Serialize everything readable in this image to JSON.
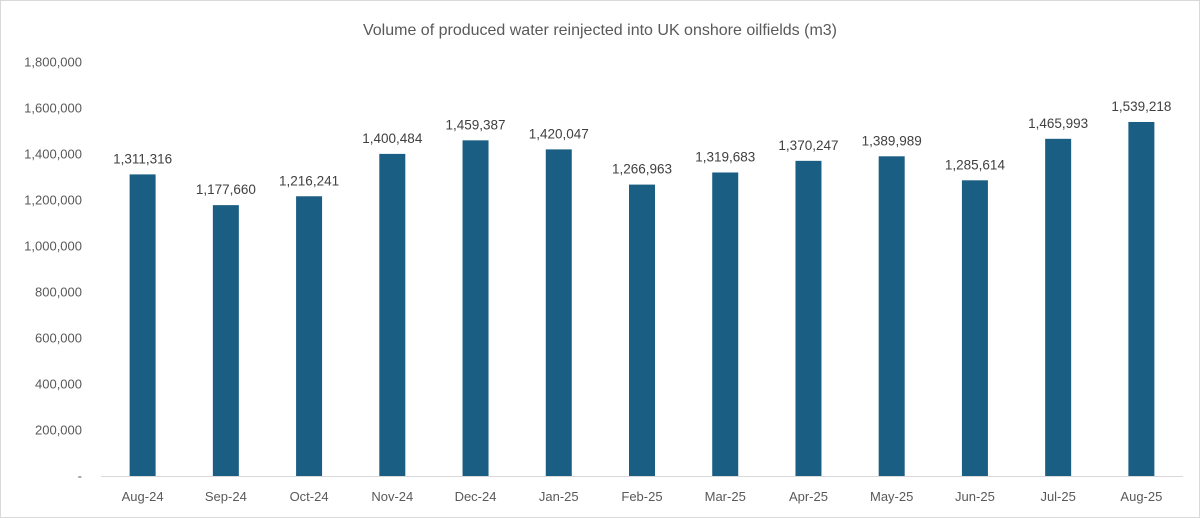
{
  "chart_data": {
    "type": "bar",
    "title": "Volume of produced water reinjected into UK onshore oilfields (m3)",
    "xlabel": "",
    "ylabel": "",
    "categories": [
      "Aug-24",
      "Sep-24",
      "Oct-24",
      "Nov-24",
      "Dec-24",
      "Jan-25",
      "Feb-25",
      "Mar-25",
      "Apr-25",
      "May-25",
      "Jun-25",
      "Jul-25",
      "Aug-25"
    ],
    "values": [
      1311316,
      1177660,
      1216241,
      1400484,
      1459387,
      1420047,
      1266963,
      1319683,
      1370247,
      1389989,
      1285614,
      1465993,
      1539218
    ],
    "value_labels": [
      "1,311,316",
      "1,177,660",
      "1,216,241",
      "1,400,484",
      "1,459,387",
      "1,420,047",
      "1,266,963",
      "1,319,683",
      "1,370,247",
      "1,389,989",
      "1,285,614",
      "1,465,993",
      "1,539,218"
    ],
    "ylim": [
      0,
      1800000
    ],
    "y_ticks": [
      0,
      200000,
      400000,
      600000,
      800000,
      1000000,
      1200000,
      1400000,
      1600000,
      1800000
    ],
    "y_tick_labels": [
      "-",
      "200,000",
      "400,000",
      "600,000",
      "800,000",
      "1,000,000",
      "1,200,000",
      "1,400,000",
      "1,600,000",
      "1,800,000"
    ],
    "grid": false,
    "legend": "none",
    "bar_color": "#1a5e83",
    "axis_color": "#d9d9d9"
  }
}
